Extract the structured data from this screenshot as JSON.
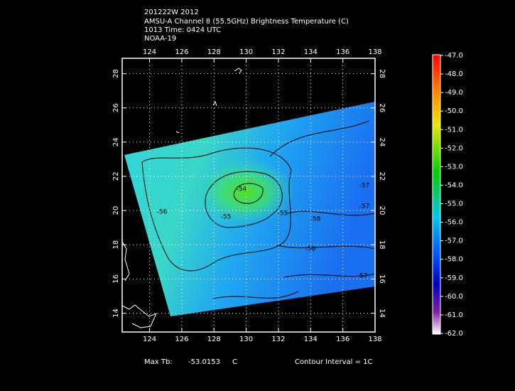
{
  "header": {
    "lines": [
      "201222W 2012",
      "AMSU-A Channel 8 (55.5GHz) Brightness Temperature (C)",
      "1013 Time: 0424 UTC",
      "NOAA-19"
    ]
  },
  "map": {
    "xlim": [
      122.3,
      138
    ],
    "ylim": [
      12.9,
      28.9
    ],
    "xticks": [
      124,
      126,
      128,
      130,
      132,
      134,
      136,
      138
    ],
    "yticks": [
      14,
      16,
      18,
      20,
      22,
      24,
      26,
      28
    ],
    "contour_labels": [
      -54,
      -55,
      -55,
      -56,
      -57,
      -57,
      -56,
      -58,
      -57
    ]
  },
  "colorbar": {
    "lim": [
      -62,
      -47
    ],
    "ticks": [
      {
        "value": -47,
        "label": "-47.0"
      },
      {
        "value": -48,
        "label": "-48.0"
      },
      {
        "value": -49,
        "label": "-49.0"
      },
      {
        "value": -50,
        "label": "-50.0"
      },
      {
        "value": -51,
        "label": "-51.0"
      },
      {
        "value": -52,
        "label": "-52.0"
      },
      {
        "value": -53,
        "label": "-53.0"
      },
      {
        "value": -54,
        "label": "-54.0"
      },
      {
        "value": -55,
        "label": "-55.0"
      },
      {
        "value": -56,
        "label": "-56.0"
      },
      {
        "value": -57,
        "label": "-57.0"
      },
      {
        "value": -58,
        "label": "-58.0"
      },
      {
        "value": -59,
        "label": "-59.0"
      },
      {
        "value": -60,
        "label": "-60.0"
      },
      {
        "value": -61,
        "label": "-61.0"
      },
      {
        "value": -62,
        "label": "-62.0"
      }
    ]
  },
  "footer": {
    "max_label": "Max Tb:",
    "max_value": "-53.0153",
    "unit": "C",
    "contour_interval": "Contour Interval = 1C"
  }
}
